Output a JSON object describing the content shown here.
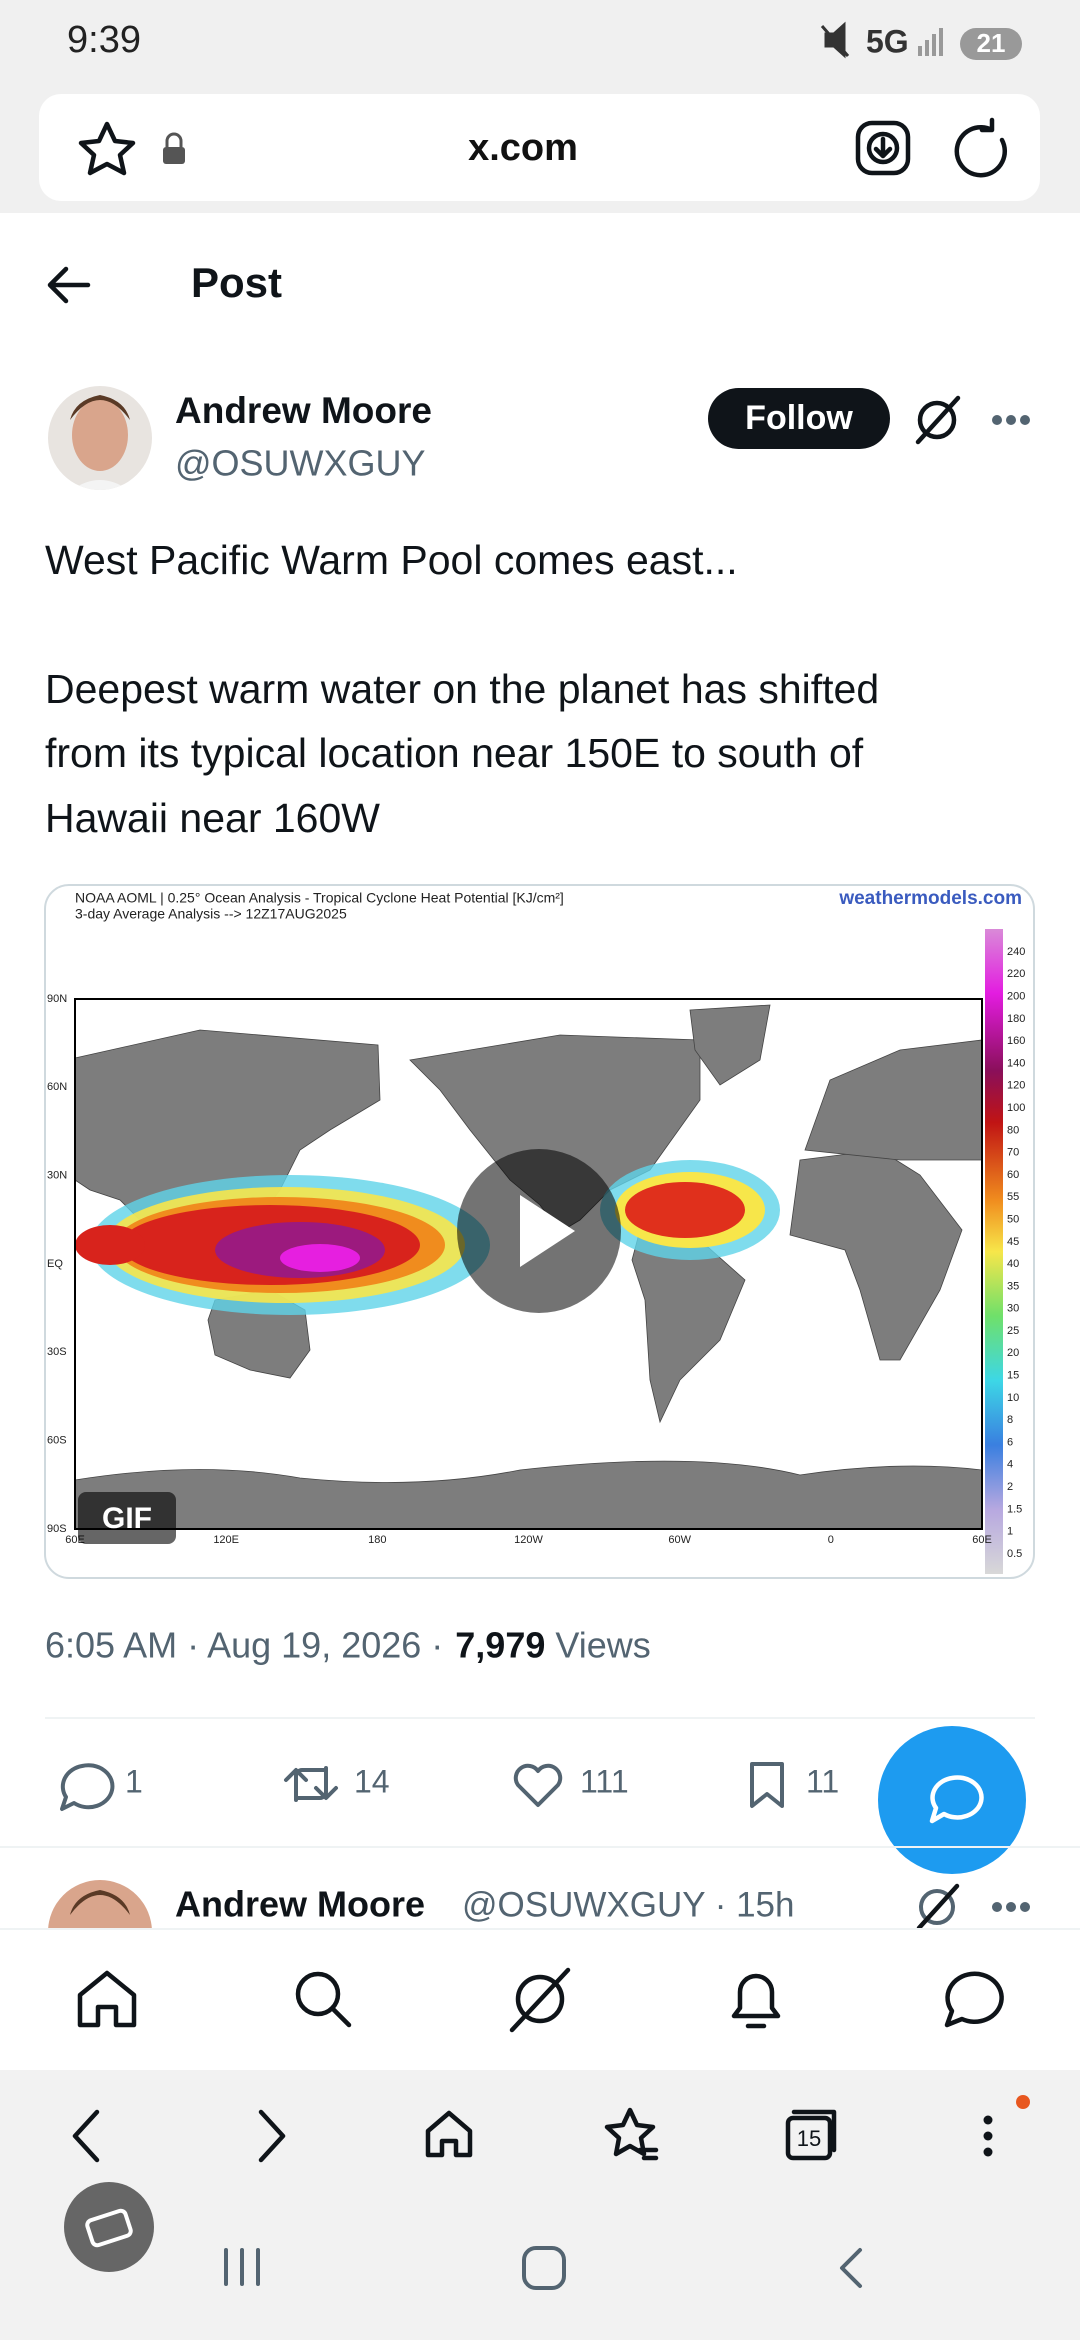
{
  "status_bar": {
    "time": "9:39",
    "network": "5G",
    "battery": "21"
  },
  "url_bar": {
    "url": "x.com"
  },
  "header": {
    "title": "Post"
  },
  "post": {
    "author": {
      "name": "Andrew Moore",
      "handle": "@OSUWXGUY"
    },
    "follow_button": "Follow",
    "text_lines": [
      "West Pacific Warm Pool comes east...",
      "Deepest warm water on the planet has shifted",
      "from its typical location near 150E to south of",
      "Hawaii near 160W"
    ],
    "media": {
      "title_line1": "NOAA AOML | 0.25° Ocean Analysis - Tropical Cyclone Heat Potential [KJ/cm²]",
      "title_line2": "3-day Average Analysis --> 12Z17AUG2025",
      "watermark": "weathermodels.com",
      "lat_labels": [
        "90N",
        "60N",
        "30N",
        "EQ",
        "30S",
        "60S",
        "90S"
      ],
      "lon_labels": [
        "60E",
        "120E",
        "180",
        "120W",
        "60W",
        "0",
        "60E"
      ],
      "colorbar_labels": [
        "240",
        "220",
        "200",
        "180",
        "160",
        "140",
        "120",
        "100",
        "80",
        "70",
        "60",
        "55",
        "50",
        "45",
        "40",
        "35",
        "30",
        "25",
        "20",
        "15",
        "10",
        "8",
        "6",
        "4",
        "2",
        "1.5",
        "1",
        "0.5"
      ],
      "badge": "GIF"
    },
    "timestamp": "6:05 AM · Aug 19, 2026 ·",
    "views_count": "7,979",
    "views_label": "Views",
    "stats": {
      "replies": "1",
      "reposts": "14",
      "likes": "111",
      "bookmarks": "11"
    }
  },
  "next_post": {
    "name": "Andrew Moore",
    "handle_time": "@OSUWXGUY · 15h"
  },
  "browser_bar": {
    "tab_count": "15"
  }
}
